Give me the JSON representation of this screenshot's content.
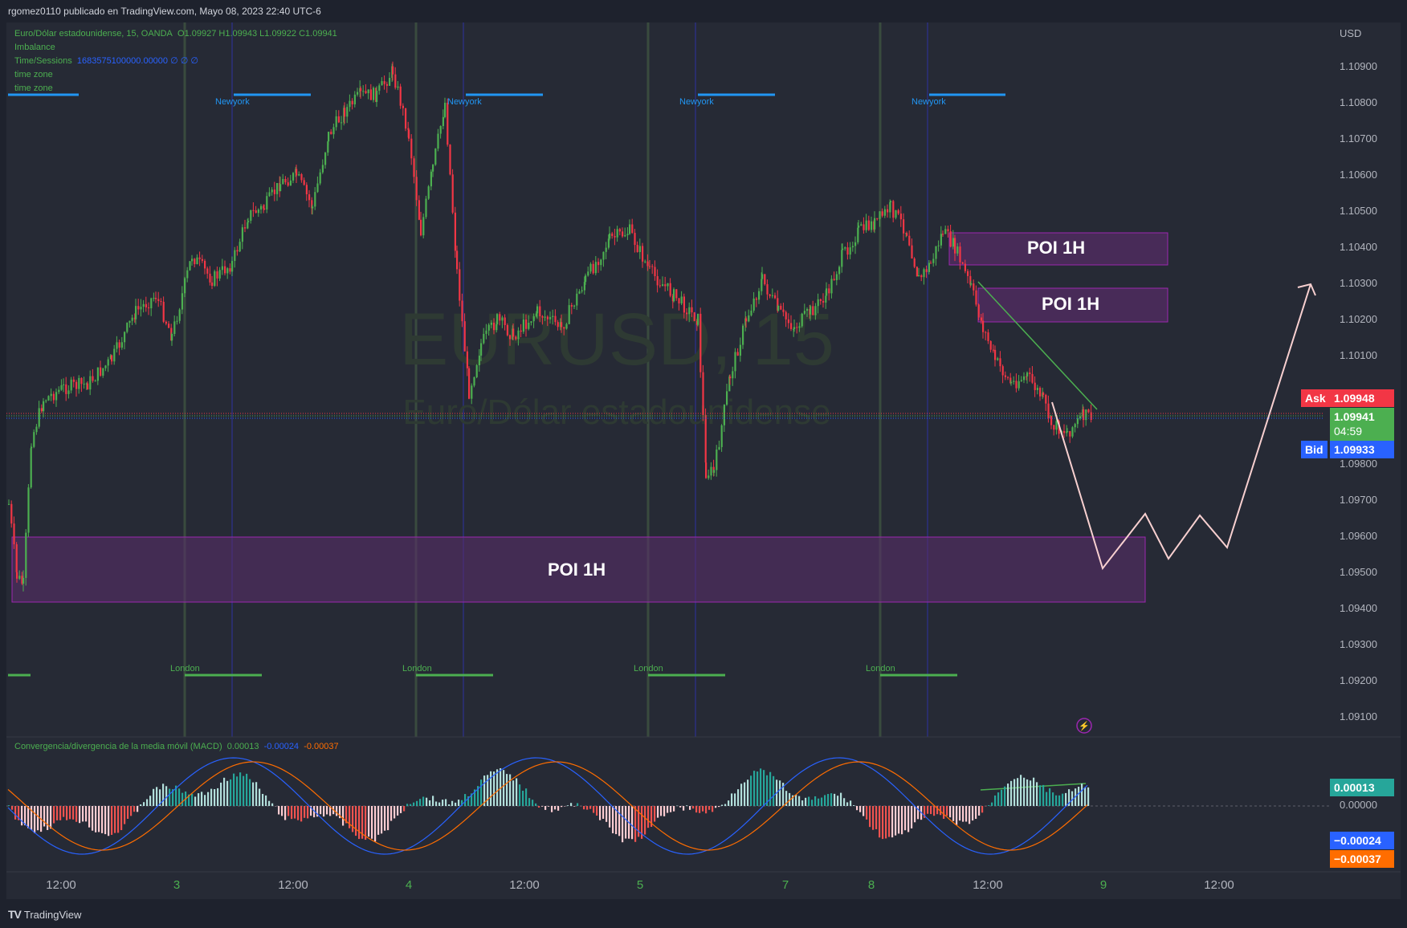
{
  "header": {
    "publish_line": "rgomez0110 publicado en TradingView.com, Mayo 08, 2023 22:40 UTC-6"
  },
  "legend": {
    "symbol_line": "Euro/Dólar estadounidense, 15, OANDA",
    "ohlc": "O1.09927  H1.09943  L1.09922  C1.09941",
    "ind1": "Imbalance",
    "ind2_name": "Time/Sessions",
    "ind2_values": "1683575100000.00000  ∅  ∅  ∅",
    "ind3": "time zone",
    "ind4": "time zone"
  },
  "watermark": {
    "symbol": "EURUSD, 15",
    "name": "Euro/Dólar estadounidense"
  },
  "price_axis": {
    "currency": "USD",
    "ticks": [
      "1.10900",
      "1.10800",
      "1.10700",
      "1.10600",
      "1.10500",
      "1.10400",
      "1.10300",
      "1.10200",
      "1.10100",
      "1.09800",
      "1.09700",
      "1.09600",
      "1.09500",
      "1.09400",
      "1.09300",
      "1.09200",
      "1.09100"
    ],
    "ask_label": "Ask",
    "ask_price": "1.09948",
    "last_price": "1.09941",
    "countdown": "04:59",
    "bid_label": "Bid",
    "bid_price": "1.09933",
    "colors": {
      "ask": "#f23645",
      "last": "#4caf50",
      "bid": "#2962ff"
    }
  },
  "zones": {
    "poi_upper": "POI 1H",
    "poi_middle": "POI 1H",
    "poi_lower": "POI 1H",
    "color": "#7b3fa0"
  },
  "sessions": {
    "newyork": [
      "Newyork",
      "Newyork",
      "Newyork",
      "Newyork"
    ],
    "london": [
      "London",
      "London",
      "London",
      "London"
    ]
  },
  "macd": {
    "label": "Convergencia/divergencia de la media móvil (MACD)",
    "v_hist": "0.00013",
    "v_macd": "-0.00024",
    "v_signal": "-0.00037",
    "axis_hist": "0.00013",
    "axis_zero": "0.00000",
    "axis_macd": "−0.00024",
    "axis_signal": "−0.00037",
    "colors": {
      "hist": "#26a69a",
      "macd": "#2962ff",
      "signal": "#ff6d00"
    }
  },
  "time_axis": [
    "12:00",
    "3",
    "12:00",
    "4",
    "12:00",
    "5",
    "7",
    "8",
    "12:00",
    "9",
    "12:00"
  ],
  "footer": {
    "brand": "TradingView"
  }
}
